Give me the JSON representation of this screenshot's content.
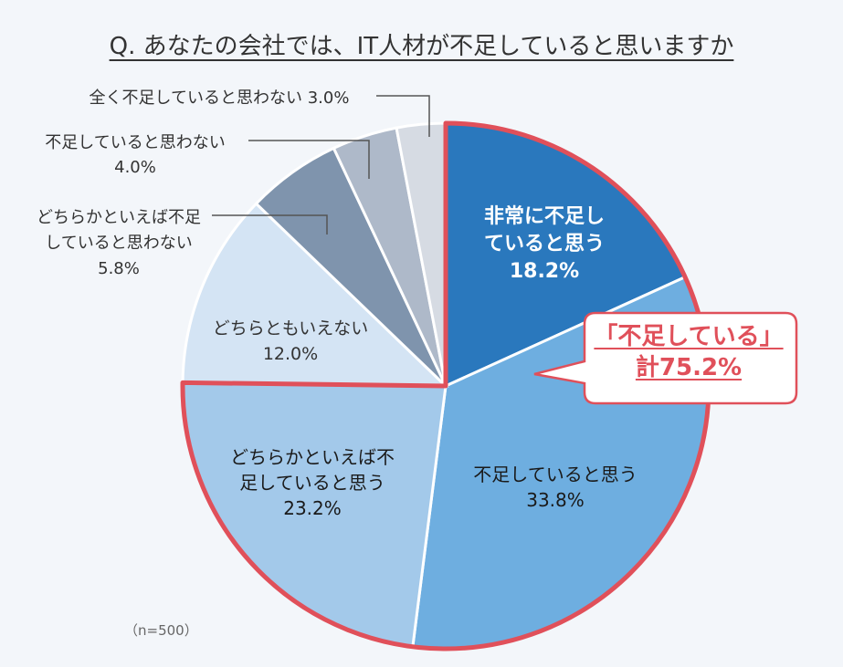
{
  "title": "Q. あなたの会社では、IT人材が不足していると思いますか",
  "chart_data": {
    "type": "pie",
    "start": "12 o'clock, clockwise",
    "slices": [
      {
        "label_lines": [
          "非常に不足し",
          "ていると思う"
        ],
        "value": 18.2,
        "value_text": "18.2%",
        "color": "#2a78bd"
      },
      {
        "label_lines": [
          "不足していると思う"
        ],
        "value": 33.8,
        "value_text": "33.8%",
        "color": "#6eaee0"
      },
      {
        "label_lines": [
          "どちらかといえば不",
          "足していると思う"
        ],
        "value": 23.2,
        "value_text": "23.2%",
        "color": "#a3c9ea"
      },
      {
        "label_lines": [
          "どちらともいえない"
        ],
        "value": 12.0,
        "value_text": "12.0%",
        "color": "#d4e4f4"
      },
      {
        "label_lines": [
          "どちらかといえば不足",
          "していると思わない"
        ],
        "value": 5.8,
        "value_text": "5.8%",
        "color": "#7f94ad"
      },
      {
        "label_lines": [
          "不足していると思わない"
        ],
        "value": 4.0,
        "value_text": "4.0%",
        "color": "#aeb9c9"
      },
      {
        "label_lines": [
          "全く不足していると思わない"
        ],
        "value": 3.0,
        "value_text": "3.0%",
        "color": "#d6dbe3"
      }
    ],
    "highlight": {
      "line1": "「不足している」",
      "line2": "計75.2%",
      "value": 75.2,
      "color": "#e0505a"
    }
  },
  "note": "（n=500）"
}
